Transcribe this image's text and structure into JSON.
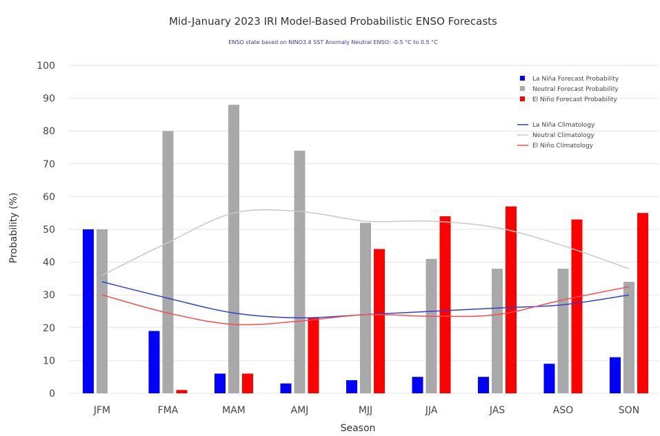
{
  "chart_data": {
    "type": "bar",
    "title": "Mid-January 2023 IRI Model-Based Probabilistic ENSO Forecasts",
    "subtitle": "ENSO state based on NINO3.4 SST Anomaly Neutral ENSO: -0.5 °C to 0.5 °C",
    "xlabel": "Season",
    "ylabel": "Probability (%)",
    "ylim": [
      0,
      100
    ],
    "yticks": [
      0,
      10,
      20,
      30,
      40,
      50,
      60,
      70,
      80,
      90,
      100
    ],
    "grid": true,
    "legend_position": "top-right",
    "categories": [
      "JFM",
      "FMA",
      "MAM",
      "AMJ",
      "MJJ",
      "JJA",
      "JAS",
      "ASO",
      "SON"
    ],
    "series": [
      {
        "name": "La Niña Forecast Probability",
        "color": "#0000ff",
        "values": [
          50,
          19,
          6,
          3,
          4,
          5,
          5,
          9,
          11
        ]
      },
      {
        "name": "Neutral Forecast Probability",
        "color": "#a9a9a9",
        "values": [
          50,
          80,
          88,
          74,
          52,
          41,
          38,
          38,
          34
        ]
      },
      {
        "name": "El Niño Forecast Probability",
        "color": "#ff0000",
        "values": [
          0,
          1,
          6,
          23,
          44,
          54,
          57,
          53,
          55
        ]
      }
    ],
    "lines": [
      {
        "name": "La Niña Climatology",
        "color": "#2b3fd6",
        "values": [
          34,
          29,
          24.5,
          23,
          24,
          25,
          26,
          27,
          30
        ]
      },
      {
        "name": "Neutral Climatology",
        "color": "#c8c8c8",
        "values": [
          36,
          46,
          55,
          55.5,
          52.5,
          52.5,
          50.5,
          45,
          38
        ]
      },
      {
        "name": "El Niño Climatology",
        "color": "#ff4a4a",
        "values": [
          30,
          24.5,
          21,
          22,
          24,
          23.5,
          24,
          28.5,
          32.5
        ]
      }
    ]
  }
}
